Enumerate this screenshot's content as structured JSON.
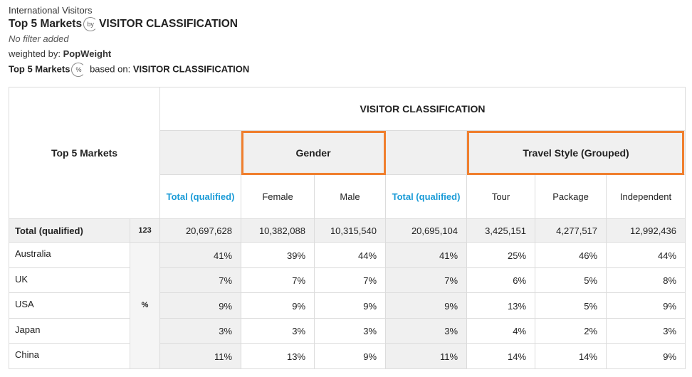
{
  "header": {
    "source": "International Visitors",
    "title_row": "Top 5 Markets",
    "title_by": "by",
    "title_col": "VISITOR CLASSIFICATION",
    "filter": "No filter added",
    "weight_label": "weighted by:",
    "weight_value": "PopWeight",
    "base_row": "Top 5 Markets",
    "base_icon": "%",
    "base_label": "based on:",
    "base_col": "VISITOR CLASSIFICATION"
  },
  "table": {
    "corner": "Top 5 Markets",
    "banner": "VISITOR CLASSIFICATION",
    "groups": [
      "Gender",
      "Travel Style (Grouped)"
    ],
    "columns": [
      "Total (qualified)",
      "Female",
      "Male",
      "Total (qualified)",
      "Tour",
      "Package",
      "Independent"
    ],
    "total_row": {
      "label": "Total (qualified)",
      "base": "123",
      "values": [
        "20,697,628",
        "10,382,088",
        "10,315,540",
        "20,695,104",
        "3,425,151",
        "4,277,517",
        "12,992,436"
      ]
    },
    "stat": "%",
    "rows": [
      {
        "label": "Australia",
        "values": [
          "41%",
          "39%",
          "44%",
          "41%",
          "25%",
          "46%",
          "44%"
        ]
      },
      {
        "label": "UK",
        "values": [
          "7%",
          "7%",
          "7%",
          "7%",
          "6%",
          "5%",
          "8%"
        ]
      },
      {
        "label": "USA",
        "values": [
          "9%",
          "9%",
          "9%",
          "9%",
          "13%",
          "5%",
          "9%"
        ]
      },
      {
        "label": "Japan",
        "values": [
          "3%",
          "3%",
          "3%",
          "3%",
          "4%",
          "2%",
          "3%"
        ]
      },
      {
        "label": "China",
        "values": [
          "11%",
          "13%",
          "9%",
          "11%",
          "14%",
          "14%",
          "9%"
        ]
      }
    ]
  }
}
